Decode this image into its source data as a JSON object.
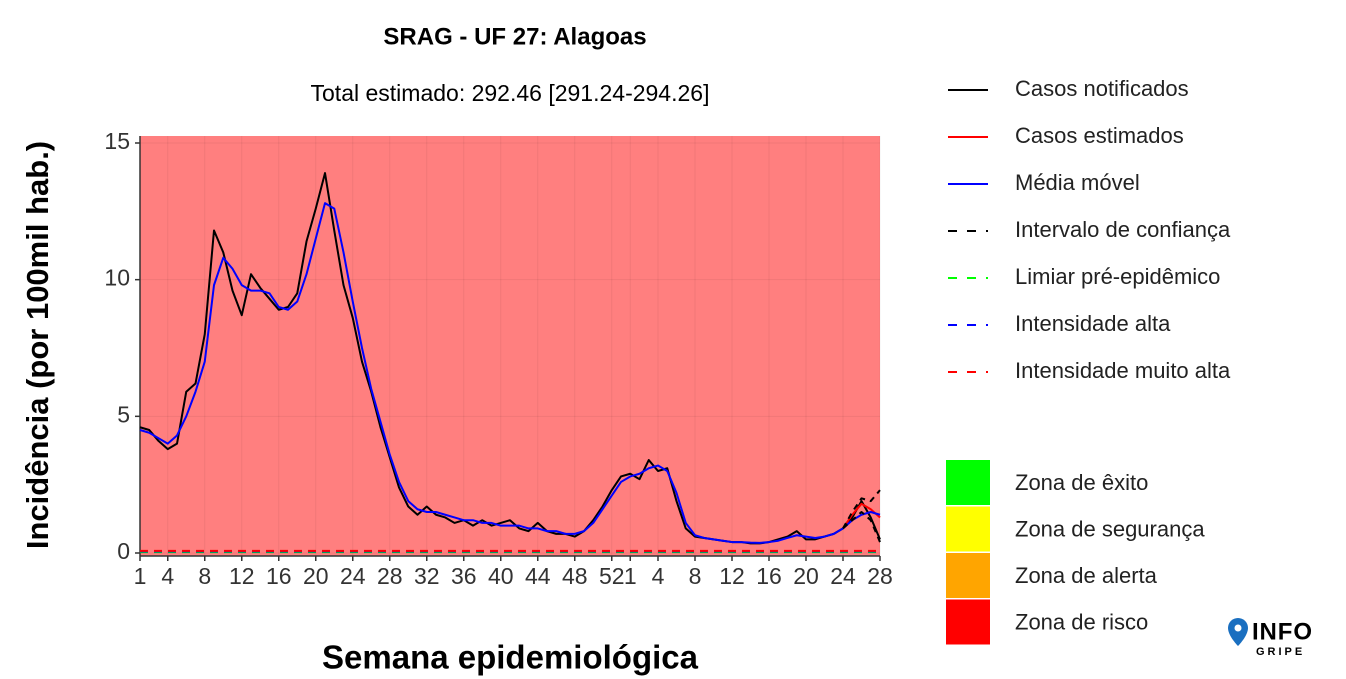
{
  "chart_data": {
    "type": "line",
    "title": "SRAG - UF 27: Alagoas",
    "subtitle": "Total estimado: 292.46 [291.24-294.26]",
    "xlabel": "Semana epidemiológica",
    "ylabel": "Incidência (por 100mil hab.)",
    "x": [
      1,
      2,
      3,
      4,
      5,
      6,
      7,
      8,
      9,
      10,
      11,
      12,
      13,
      14,
      15,
      16,
      17,
      18,
      19,
      20,
      21,
      22,
      23,
      24,
      25,
      26,
      27,
      28,
      29,
      30,
      31,
      32,
      33,
      34,
      35,
      36,
      37,
      38,
      39,
      40,
      41,
      42,
      43,
      44,
      45,
      46,
      47,
      48,
      49,
      50,
      51,
      52,
      53,
      54,
      55,
      56,
      57,
      58,
      59,
      60,
      61,
      62,
      63,
      64,
      65,
      66,
      67,
      68,
      69,
      70,
      71,
      72,
      73,
      74,
      75,
      76,
      77,
      78,
      79,
      80,
      81
    ],
    "xlim": [
      1,
      81
    ],
    "xticks": [
      1,
      4,
      8,
      12,
      16,
      20,
      24,
      28,
      32,
      36,
      40,
      44,
      48,
      52,
      {
        "value": 54,
        "label": "1"
      },
      {
        "value": 57,
        "label": "4"
      },
      {
        "value": 61,
        "label": "8"
      },
      {
        "value": 65,
        "label": "12"
      },
      {
        "value": 69,
        "label": "16"
      },
      {
        "value": 73,
        "label": "20"
      },
      {
        "value": 77,
        "label": "24"
      },
      {
        "value": 81,
        "label": "28"
      }
    ],
    "ylim": [
      0,
      15
    ],
    "yticks": [
      0,
      5,
      10,
      15
    ],
    "grid": true,
    "series": [
      {
        "name": "Casos notificados",
        "color": "#000000",
        "dash": false,
        "values": [
          4.6,
          4.5,
          4.1,
          3.8,
          4.0,
          5.9,
          6.2,
          8.0,
          11.8,
          11.0,
          9.6,
          8.7,
          10.2,
          9.7,
          9.3,
          8.9,
          9.0,
          9.5,
          11.4,
          12.6,
          13.9,
          11.8,
          9.8,
          8.6,
          7.0,
          5.9,
          4.6,
          3.5,
          2.4,
          1.7,
          1.4,
          1.7,
          1.4,
          1.3,
          1.1,
          1.2,
          1.0,
          1.2,
          1.0,
          1.1,
          1.2,
          0.9,
          0.8,
          1.1,
          0.8,
          0.7,
          0.7,
          0.6,
          0.8,
          1.2,
          1.7,
          2.3,
          2.8,
          2.9,
          2.7,
          3.4,
          3.0,
          3.1,
          1.9,
          0.9,
          0.6,
          0.55,
          0.5,
          0.45,
          0.4,
          0.4,
          0.35,
          0.35,
          0.4,
          0.5,
          0.6,
          0.8,
          0.5,
          0.5,
          0.6,
          0.7,
          0.9,
          1.3,
          1.9,
          1.3,
          0.5
        ]
      },
      {
        "name": "Casos estimados",
        "color": "#ff0000",
        "dash": false,
        "values": [
          null,
          null,
          null,
          null,
          null,
          null,
          null,
          null,
          null,
          null,
          null,
          null,
          null,
          null,
          null,
          null,
          null,
          null,
          null,
          null,
          null,
          null,
          null,
          null,
          null,
          null,
          null,
          null,
          null,
          null,
          null,
          null,
          null,
          null,
          null,
          null,
          null,
          null,
          null,
          null,
          null,
          null,
          null,
          null,
          null,
          null,
          null,
          null,
          null,
          null,
          null,
          null,
          null,
          null,
          null,
          null,
          null,
          null,
          null,
          null,
          null,
          null,
          null,
          null,
          null,
          null,
          null,
          null,
          null,
          null,
          null,
          null,
          null,
          null,
          null,
          null,
          0.9,
          1.4,
          1.8,
          1.6,
          1.3
        ]
      },
      {
        "name": "Média móvel",
        "color": "#0000ff",
        "dash": false,
        "values": [
          4.5,
          4.4,
          4.2,
          4.0,
          4.3,
          5.0,
          5.9,
          7.0,
          9.8,
          10.8,
          10.4,
          9.8,
          9.6,
          9.6,
          9.5,
          9.0,
          8.9,
          9.2,
          10.2,
          11.5,
          12.8,
          12.6,
          11.0,
          9.2,
          7.5,
          6.0,
          4.8,
          3.6,
          2.6,
          1.9,
          1.6,
          1.5,
          1.5,
          1.4,
          1.3,
          1.2,
          1.2,
          1.1,
          1.1,
          1.0,
          1.0,
          1.0,
          0.9,
          0.9,
          0.8,
          0.8,
          0.7,
          0.7,
          0.8,
          1.1,
          1.6,
          2.1,
          2.6,
          2.8,
          2.9,
          3.1,
          3.2,
          3.0,
          2.2,
          1.1,
          0.65,
          0.55,
          0.5,
          0.45,
          0.4,
          0.4,
          0.38,
          0.37,
          0.4,
          0.45,
          0.55,
          0.65,
          0.6,
          0.55,
          0.6,
          0.7,
          0.9,
          1.2,
          1.4,
          1.5,
          1.4
        ]
      },
      {
        "name": "Intervalo de confiança",
        "color": "#000000",
        "dash": true,
        "lower": [
          null,
          null,
          null,
          null,
          null,
          null,
          null,
          null,
          null,
          null,
          null,
          null,
          null,
          null,
          null,
          null,
          null,
          null,
          null,
          null,
          null,
          null,
          null,
          null,
          null,
          null,
          null,
          null,
          null,
          null,
          null,
          null,
          null,
          null,
          null,
          null,
          null,
          null,
          null,
          null,
          null,
          null,
          null,
          null,
          null,
          null,
          null,
          null,
          null,
          null,
          null,
          null,
          null,
          null,
          null,
          null,
          null,
          null,
          null,
          null,
          null,
          null,
          null,
          null,
          null,
          null,
          null,
          null,
          null,
          null,
          null,
          null,
          null,
          null,
          null,
          null,
          0.9,
          1.2,
          1.5,
          1.2,
          0.4
        ],
        "upper": [
          null,
          null,
          null,
          null,
          null,
          null,
          null,
          null,
          null,
          null,
          null,
          null,
          null,
          null,
          null,
          null,
          null,
          null,
          null,
          null,
          null,
          null,
          null,
          null,
          null,
          null,
          null,
          null,
          null,
          null,
          null,
          null,
          null,
          null,
          null,
          null,
          null,
          null,
          null,
          null,
          null,
          null,
          null,
          null,
          null,
          null,
          null,
          null,
          null,
          null,
          null,
          null,
          null,
          null,
          null,
          null,
          null,
          null,
          null,
          null,
          null,
          null,
          null,
          null,
          null,
          null,
          null,
          null,
          null,
          null,
          null,
          null,
          null,
          null,
          null,
          null,
          0.9,
          1.5,
          2.0,
          1.9,
          2.3
        ]
      }
    ],
    "thresholds": [
      {
        "name": "Limiar pré-epidêmico",
        "color": "#00ff00",
        "value": 0.03
      },
      {
        "name": "Intensidade alta",
        "color": "#0000ff",
        "value": 0.06
      },
      {
        "name": "Intensidade muito alta",
        "color": "#ff0000",
        "value": 0.08
      }
    ],
    "zones": [
      {
        "name": "Zona de êxito",
        "color": "#00ff00"
      },
      {
        "name": "Zona de segurança",
        "color": "#ffff00"
      },
      {
        "name": "Zona de alerta",
        "color": "#ffa500"
      },
      {
        "name": "Zona de risco",
        "color": "#ff0000"
      }
    ],
    "logo": {
      "line1": "INFO",
      "line2": "GRIPE"
    }
  }
}
